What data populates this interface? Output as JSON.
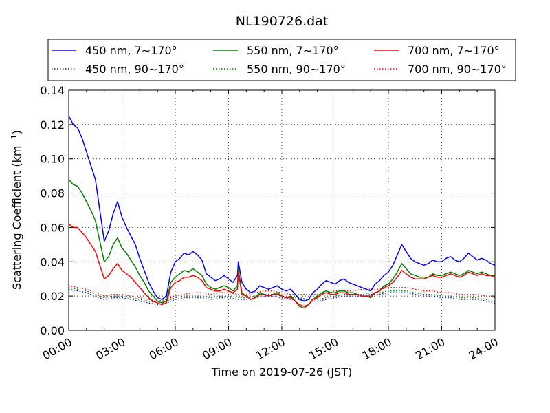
{
  "chart_data": {
    "type": "line",
    "title": "NL190726.dat",
    "xlabel": "Time on 2019-07-26 (JST)",
    "ylabel": "Scattering Coefficient (km",
    "ylabel_sup": "−1",
    "ylabel_end": ")",
    "xlim": [
      0,
      24
    ],
    "ylim": [
      0.0,
      0.14
    ],
    "x_unit": "hours",
    "x_ticks": [
      0,
      3,
      6,
      9,
      12,
      15,
      18,
      21,
      24
    ],
    "x_tick_labels": [
      "00:00",
      "03:00",
      "06:00",
      "09:00",
      "12:00",
      "15:00",
      "18:00",
      "21:00",
      "24:00"
    ],
    "y_ticks": [
      0.0,
      0.02,
      0.04,
      0.06,
      0.08,
      0.1,
      0.12,
      0.14
    ],
    "y_tick_labels": [
      "0.00",
      "0.02",
      "0.04",
      "0.06",
      "0.08",
      "0.10",
      "0.12",
      "0.14"
    ],
    "grid": true,
    "legend_position": "top-center",
    "legend_columns": 3,
    "series": [
      {
        "name": "450 nm, 7∼170°",
        "color": "#0000ff",
        "style": "solid",
        "x": [
          0,
          0.25,
          0.5,
          0.75,
          1,
          1.25,
          1.5,
          1.75,
          2,
          2.25,
          2.5,
          2.75,
          3,
          3.25,
          3.5,
          3.75,
          4,
          4.25,
          4.5,
          4.75,
          5,
          5.25,
          5.5,
          5.75,
          6,
          6.25,
          6.5,
          6.75,
          7,
          7.25,
          7.5,
          7.75,
          8,
          8.25,
          8.5,
          8.75,
          9,
          9.25,
          9.5,
          9.55,
          9.75,
          10,
          10.25,
          10.5,
          10.75,
          11,
          11.25,
          11.5,
          11.75,
          12,
          12.25,
          12.5,
          12.75,
          13,
          13.25,
          13.5,
          13.75,
          14,
          14.25,
          14.5,
          14.75,
          15,
          15.25,
          15.5,
          15.75,
          16,
          16.25,
          16.5,
          16.75,
          17,
          17.25,
          17.5,
          17.75,
          18,
          18.25,
          18.5,
          18.75,
          19,
          19.25,
          19.5,
          19.75,
          20,
          20.25,
          20.5,
          20.75,
          21,
          21.25,
          21.5,
          21.75,
          22,
          22.25,
          22.5,
          22.75,
          23,
          23.25,
          23.5,
          23.75,
          24
        ],
        "y": [
          0.125,
          0.12,
          0.118,
          0.112,
          0.104,
          0.096,
          0.088,
          0.07,
          0.052,
          0.058,
          0.068,
          0.075,
          0.066,
          0.06,
          0.055,
          0.05,
          0.042,
          0.035,
          0.028,
          0.023,
          0.019,
          0.018,
          0.02,
          0.034,
          0.04,
          0.042,
          0.045,
          0.044,
          0.046,
          0.044,
          0.041,
          0.033,
          0.031,
          0.029,
          0.03,
          0.032,
          0.03,
          0.028,
          0.032,
          0.04,
          0.028,
          0.024,
          0.022,
          0.023,
          0.026,
          0.025,
          0.024,
          0.025,
          0.026,
          0.024,
          0.023,
          0.024,
          0.021,
          0.018,
          0.017,
          0.018,
          0.022,
          0.024,
          0.027,
          0.029,
          0.028,
          0.027,
          0.029,
          0.03,
          0.028,
          0.027,
          0.026,
          0.025,
          0.024,
          0.023,
          0.027,
          0.029,
          0.032,
          0.034,
          0.038,
          0.044,
          0.05,
          0.046,
          0.042,
          0.04,
          0.039,
          0.038,
          0.039,
          0.041,
          0.04,
          0.04,
          0.042,
          0.043,
          0.041,
          0.04,
          0.042,
          0.045,
          0.043,
          0.041,
          0.042,
          0.041,
          0.039,
          0.038
        ]
      },
      {
        "name": "450 nm, 90∼170°",
        "color": "#0000ff",
        "style": "dotted",
        "x": [
          0,
          0.5,
          1,
          1.5,
          2,
          2.5,
          3,
          3.5,
          4,
          4.5,
          5,
          5.5,
          6,
          6.5,
          7,
          7.5,
          8,
          8.5,
          9,
          9.5,
          10,
          10.5,
          11,
          11.5,
          12,
          12.5,
          13,
          13.5,
          14,
          14.5,
          15,
          15.5,
          16,
          16.5,
          17,
          17.5,
          18,
          18.5,
          19,
          19.5,
          20,
          20.5,
          21,
          21.5,
          22,
          22.5,
          23,
          23.5,
          24
        ],
        "y": [
          0.024,
          0.023,
          0.022,
          0.02,
          0.018,
          0.019,
          0.019,
          0.018,
          0.017,
          0.016,
          0.015,
          0.016,
          0.018,
          0.019,
          0.019,
          0.019,
          0.018,
          0.019,
          0.019,
          0.018,
          0.018,
          0.019,
          0.02,
          0.02,
          0.019,
          0.018,
          0.018,
          0.017,
          0.017,
          0.018,
          0.019,
          0.02,
          0.02,
          0.02,
          0.021,
          0.021,
          0.022,
          0.022,
          0.022,
          0.021,
          0.02,
          0.02,
          0.019,
          0.019,
          0.018,
          0.018,
          0.018,
          0.017,
          0.016
        ]
      },
      {
        "name": "550 nm, 7∼170°",
        "color": "#008000",
        "style": "solid",
        "x": [
          0,
          0.25,
          0.5,
          0.75,
          1,
          1.25,
          1.5,
          1.75,
          2,
          2.25,
          2.5,
          2.75,
          3,
          3.25,
          3.5,
          3.75,
          4,
          4.25,
          4.5,
          4.75,
          5,
          5.25,
          5.5,
          5.75,
          6,
          6.25,
          6.5,
          6.75,
          7,
          7.25,
          7.5,
          7.75,
          8,
          8.25,
          8.5,
          8.75,
          9,
          9.25,
          9.5,
          9.55,
          9.75,
          10,
          10.25,
          10.5,
          10.75,
          11,
          11.25,
          11.5,
          11.75,
          12,
          12.25,
          12.5,
          12.75,
          13,
          13.25,
          13.5,
          13.75,
          14,
          14.25,
          14.5,
          14.75,
          15,
          15.25,
          15.5,
          15.75,
          16,
          16.25,
          16.5,
          16.75,
          17,
          17.25,
          17.5,
          17.75,
          18,
          18.25,
          18.5,
          18.75,
          19,
          19.25,
          19.5,
          19.75,
          20,
          20.25,
          20.5,
          20.75,
          21,
          21.25,
          21.5,
          21.75,
          22,
          22.25,
          22.5,
          22.75,
          23,
          23.25,
          23.5,
          23.75,
          24
        ],
        "y": [
          0.088,
          0.085,
          0.084,
          0.08,
          0.075,
          0.07,
          0.064,
          0.052,
          0.04,
          0.043,
          0.05,
          0.054,
          0.048,
          0.045,
          0.041,
          0.037,
          0.032,
          0.028,
          0.023,
          0.02,
          0.017,
          0.016,
          0.017,
          0.028,
          0.031,
          0.033,
          0.035,
          0.034,
          0.036,
          0.034,
          0.032,
          0.027,
          0.025,
          0.024,
          0.025,
          0.026,
          0.025,
          0.023,
          0.026,
          0.036,
          0.022,
          0.02,
          0.018,
          0.019,
          0.022,
          0.021,
          0.02,
          0.021,
          0.022,
          0.02,
          0.019,
          0.02,
          0.017,
          0.014,
          0.013,
          0.015,
          0.018,
          0.02,
          0.022,
          0.023,
          0.022,
          0.022,
          0.023,
          0.023,
          0.022,
          0.022,
          0.021,
          0.02,
          0.02,
          0.019,
          0.022,
          0.023,
          0.026,
          0.027,
          0.03,
          0.034,
          0.039,
          0.036,
          0.033,
          0.032,
          0.031,
          0.031,
          0.031,
          0.033,
          0.032,
          0.032,
          0.033,
          0.034,
          0.033,
          0.032,
          0.033,
          0.035,
          0.034,
          0.033,
          0.034,
          0.033,
          0.032,
          0.032
        ]
      },
      {
        "name": "550 nm, 90∼170°",
        "color": "#008000",
        "style": "dotted",
        "x": [
          0,
          0.5,
          1,
          1.5,
          2,
          2.5,
          3,
          3.5,
          4,
          4.5,
          5,
          5.5,
          6,
          6.5,
          7,
          7.5,
          8,
          8.5,
          9,
          9.5,
          10,
          10.5,
          11,
          11.5,
          12,
          12.5,
          13,
          13.5,
          14,
          14.5,
          15,
          15.5,
          16,
          16.5,
          17,
          17.5,
          18,
          18.5,
          19,
          19.5,
          20,
          20.5,
          21,
          21.5,
          22,
          22.5,
          23,
          23.5,
          24
        ],
        "y": [
          0.025,
          0.024,
          0.023,
          0.021,
          0.019,
          0.02,
          0.02,
          0.019,
          0.018,
          0.017,
          0.016,
          0.017,
          0.019,
          0.02,
          0.02,
          0.02,
          0.019,
          0.02,
          0.02,
          0.019,
          0.019,
          0.02,
          0.021,
          0.021,
          0.02,
          0.019,
          0.019,
          0.018,
          0.018,
          0.019,
          0.02,
          0.021,
          0.021,
          0.021,
          0.022,
          0.022,
          0.023,
          0.023,
          0.023,
          0.022,
          0.021,
          0.021,
          0.02,
          0.02,
          0.019,
          0.019,
          0.019,
          0.018,
          0.017
        ]
      },
      {
        "name": "700 nm, 7∼170°",
        "color": "#ff0000",
        "style": "solid",
        "x": [
          0,
          0.25,
          0.5,
          0.75,
          1,
          1.25,
          1.5,
          1.75,
          2,
          2.25,
          2.5,
          2.75,
          3,
          3.25,
          3.5,
          3.75,
          4,
          4.25,
          4.5,
          4.75,
          5,
          5.25,
          5.5,
          5.75,
          6,
          6.25,
          6.5,
          6.75,
          7,
          7.25,
          7.5,
          7.75,
          8,
          8.25,
          8.5,
          8.75,
          9,
          9.25,
          9.5,
          9.55,
          9.75,
          10,
          10.25,
          10.5,
          10.75,
          11,
          11.25,
          11.5,
          11.75,
          12,
          12.25,
          12.5,
          12.75,
          13,
          13.25,
          13.5,
          13.75,
          14,
          14.25,
          14.5,
          14.75,
          15,
          15.25,
          15.5,
          15.75,
          16,
          16.25,
          16.5,
          16.75,
          17,
          17.25,
          17.5,
          17.75,
          18,
          18.25,
          18.5,
          18.75,
          19,
          19.25,
          19.5,
          19.75,
          20,
          20.25,
          20.5,
          20.75,
          21,
          21.25,
          21.5,
          21.75,
          22,
          22.25,
          22.5,
          22.75,
          23,
          23.25,
          23.5,
          23.75,
          24
        ],
        "y": [
          0.062,
          0.06,
          0.06,
          0.057,
          0.054,
          0.05,
          0.046,
          0.038,
          0.03,
          0.032,
          0.036,
          0.039,
          0.035,
          0.033,
          0.031,
          0.028,
          0.025,
          0.022,
          0.019,
          0.017,
          0.016,
          0.015,
          0.016,
          0.025,
          0.028,
          0.029,
          0.031,
          0.031,
          0.032,
          0.031,
          0.029,
          0.025,
          0.024,
          0.023,
          0.023,
          0.024,
          0.023,
          0.022,
          0.024,
          0.034,
          0.021,
          0.02,
          0.018,
          0.019,
          0.021,
          0.021,
          0.02,
          0.021,
          0.021,
          0.02,
          0.019,
          0.019,
          0.017,
          0.015,
          0.014,
          0.015,
          0.018,
          0.019,
          0.021,
          0.022,
          0.021,
          0.021,
          0.022,
          0.022,
          0.021,
          0.021,
          0.021,
          0.02,
          0.02,
          0.02,
          0.022,
          0.023,
          0.025,
          0.026,
          0.028,
          0.031,
          0.035,
          0.033,
          0.031,
          0.03,
          0.03,
          0.03,
          0.031,
          0.032,
          0.031,
          0.031,
          0.032,
          0.033,
          0.032,
          0.031,
          0.032,
          0.034,
          0.033,
          0.032,
          0.033,
          0.032,
          0.032,
          0.031
        ]
      },
      {
        "name": "700 nm, 90∼170°",
        "color": "#ff0000",
        "style": "dotted",
        "x": [
          0,
          0.5,
          1,
          1.5,
          2,
          2.5,
          3,
          3.5,
          4,
          4.5,
          5,
          5.5,
          6,
          6.5,
          7,
          7.5,
          8,
          8.5,
          9,
          9.5,
          10,
          10.5,
          11,
          11.5,
          12,
          12.5,
          13,
          13.5,
          14,
          14.5,
          15,
          15.5,
          16,
          16.5,
          17,
          17.5,
          18,
          18.5,
          19,
          19.5,
          20,
          20.5,
          21,
          21.5,
          22,
          22.5,
          23,
          23.5,
          24
        ],
        "y": [
          0.026,
          0.025,
          0.024,
          0.022,
          0.02,
          0.021,
          0.021,
          0.02,
          0.019,
          0.018,
          0.017,
          0.018,
          0.02,
          0.021,
          0.022,
          0.022,
          0.021,
          0.022,
          0.022,
          0.021,
          0.021,
          0.022,
          0.023,
          0.023,
          0.022,
          0.021,
          0.021,
          0.021,
          0.021,
          0.022,
          0.023,
          0.023,
          0.023,
          0.024,
          0.024,
          0.024,
          0.025,
          0.025,
          0.025,
          0.024,
          0.023,
          0.023,
          0.022,
          0.022,
          0.021,
          0.021,
          0.021,
          0.02,
          0.019
        ]
      }
    ]
  }
}
